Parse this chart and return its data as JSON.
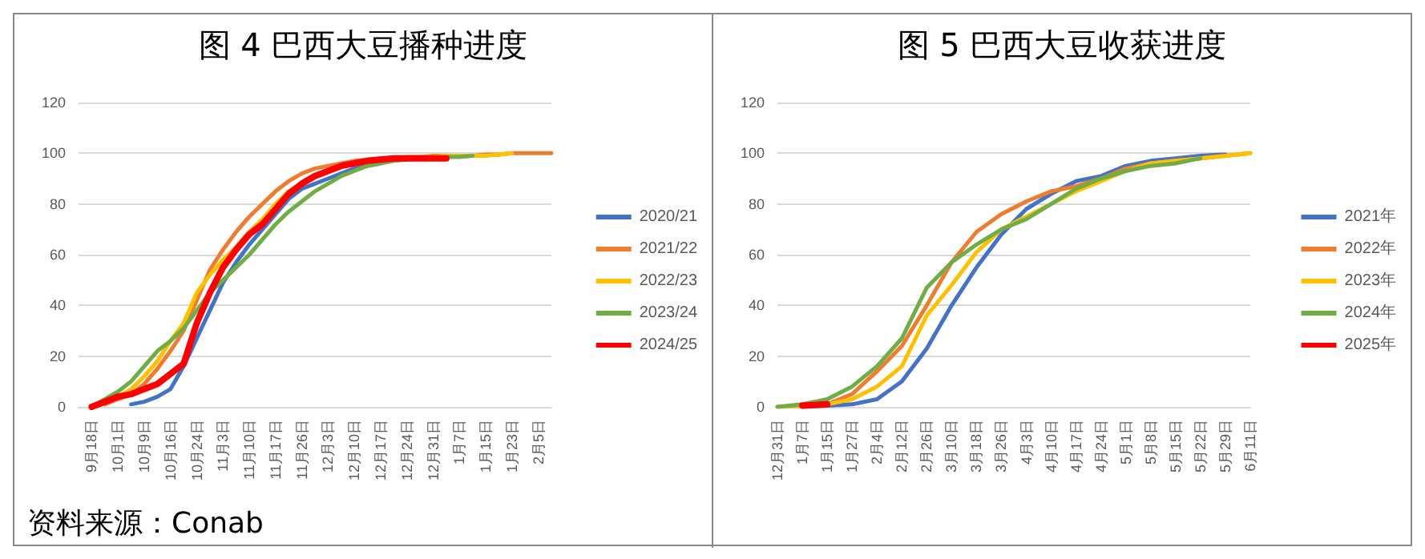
{
  "chart_data": [
    {
      "type": "line",
      "title": "图 4 巴西大豆播种进度",
      "annotations": [
        "资料来源：Conab"
      ],
      "categories": [
        null,
        "9月18日",
        null,
        "10月1日",
        null,
        "10月9日",
        null,
        "10月16日",
        null,
        "10月24日",
        null,
        "11月3日",
        null,
        "11月10日",
        null,
        "11月17日",
        null,
        "11月26日",
        null,
        "12月3日",
        null,
        "12月10日",
        null,
        "12月17日",
        null,
        "12月24日",
        null,
        "12月31日",
        null,
        "1月7日",
        null,
        "1月15日",
        null,
        "1月23日",
        null,
        "2月5日",
        null
      ],
      "series": [
        {
          "name": "2020/21",
          "color": "#4472c4",
          "values": [
            null,
            null,
            null,
            null,
            1,
            2,
            4,
            7,
            16,
            27,
            38,
            49,
            57,
            64,
            70,
            76,
            82,
            86,
            88,
            90,
            92,
            94,
            95,
            96,
            null,
            null,
            null,
            null,
            null,
            null,
            null,
            null,
            null,
            null,
            null,
            null,
            null
          ]
        },
        {
          "name": "2021/22",
          "color": "#ed7d31",
          "values": [
            null,
            null,
            1,
            3,
            5,
            9,
            15,
            22,
            30,
            42,
            54,
            62,
            69,
            75,
            80,
            85,
            89,
            92,
            94,
            95,
            96,
            97,
            97.5,
            98,
            98,
            98.5,
            98.5,
            99,
            99,
            99,
            99,
            99.5,
            99.5,
            100,
            100,
            100,
            100
          ]
        },
        {
          "name": "2022/23",
          "color": "#ffc000",
          "values": [
            null,
            0,
            2,
            4,
            7,
            12,
            18,
            26,
            33,
            45,
            52,
            58,
            63,
            69,
            74,
            80,
            85,
            88,
            91,
            93,
            95,
            96,
            97,
            97.5,
            98,
            98,
            98.5,
            98.5,
            99,
            99,
            99,
            99,
            99.5,
            100,
            null,
            null,
            null
          ]
        },
        {
          "name": "2023/24",
          "color": "#70ad47",
          "values": [
            null,
            0,
            3,
            6,
            10,
            16,
            22,
            26,
            31,
            38,
            45,
            50,
            55,
            60,
            66,
            72,
            77,
            81,
            85,
            88,
            91,
            93,
            95,
            96,
            97,
            97.5,
            98,
            98,
            98.5,
            98.5,
            99,
            null,
            null,
            null,
            null,
            null,
            null
          ]
        },
        {
          "name": "2024/25",
          "color": "#ff0000",
          "values": [
            null,
            0,
            2,
            4,
            5,
            7,
            9,
            13,
            17,
            33,
            45,
            55,
            62,
            68,
            72,
            78,
            84,
            88,
            91,
            93,
            95,
            96,
            97,
            97.5,
            98,
            98,
            98,
            98,
            98,
            null,
            null,
            null,
            null,
            null,
            null,
            null,
            null
          ]
        }
      ],
      "ylim": [
        0,
        120
      ],
      "yticks": [
        0,
        20,
        40,
        60,
        80,
        100,
        120
      ],
      "grid": "y",
      "legend": "right",
      "marker": "none",
      "line_style": "solid"
    },
    {
      "type": "line",
      "title": "图 5 巴西大豆收获进度",
      "categories": [
        "12月31日",
        "1月7日",
        "1月15日",
        "1月27日",
        "2月4日",
        "2月12日",
        "2月26日",
        "3月10日",
        "3月18日",
        "3月26日",
        "4月3日",
        "4月10日",
        "4月17日",
        "4月24日",
        "5月1日",
        "5月8日",
        "5月15日",
        "5月22日",
        "5月29日",
        "6月11日"
      ],
      "series": [
        {
          "name": "2021年",
          "color": "#4472c4",
          "values": [
            null,
            0,
            0.5,
            1,
            3,
            10,
            23,
            40,
            55,
            68,
            78,
            84,
            89,
            91,
            95,
            97,
            98,
            99,
            99.5,
            null
          ]
        },
        {
          "name": "2022年",
          "color": "#ed7d31",
          "values": [
            0,
            0.5,
            1,
            5,
            14,
            24,
            40,
            57,
            69,
            76,
            81,
            85,
            87,
            90,
            94,
            96,
            97,
            98,
            99,
            100
          ]
        },
        {
          "name": "2023年",
          "color": "#ffc000",
          "values": [
            0,
            0.5,
            1,
            3,
            8,
            16,
            36,
            48,
            61,
            70,
            75,
            80,
            85,
            89,
            93,
            96,
            97,
            98,
            99,
            100
          ]
        },
        {
          "name": "2024年",
          "color": "#70ad47",
          "values": [
            0,
            1,
            3,
            8,
            16,
            27,
            47,
            57,
            64,
            70,
            74,
            80,
            86,
            90,
            93,
            95,
            96,
            98,
            null,
            null
          ]
        },
        {
          "name": "2025年",
          "color": "#ff0000",
          "values": [
            null,
            0.5,
            1,
            null,
            null,
            null,
            null,
            null,
            null,
            null,
            null,
            null,
            null,
            null,
            null,
            null,
            null,
            null,
            null,
            null
          ]
        }
      ],
      "ylim": [
        0,
        120
      ],
      "yticks": [
        0,
        20,
        40,
        60,
        80,
        100,
        120
      ],
      "grid": "y",
      "legend": "right",
      "marker": "none",
      "line_style": "solid"
    }
  ]
}
